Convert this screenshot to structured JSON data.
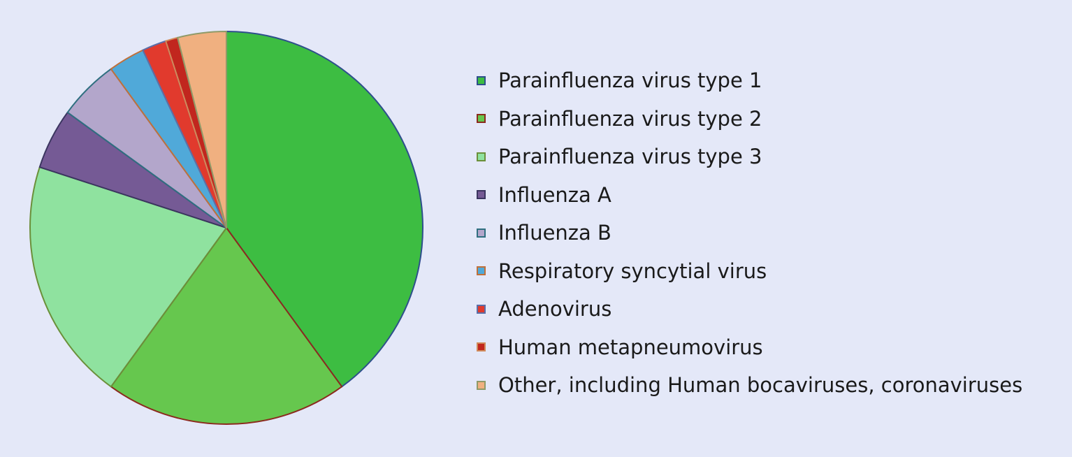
{
  "chart_data": {
    "type": "pie",
    "start": "12 o'clock",
    "direction": "clockwise",
    "legend_position": "right",
    "slices": [
      {
        "name": "Parainfluenza virus type 1",
        "value": 40,
        "color": "#3dbd42",
        "edge": "#2e4f8c"
      },
      {
        "name": "Parainfluenza virus type 2",
        "value": 20,
        "color": "#66c74e",
        "edge": "#8b2a1e"
      },
      {
        "name": "Parainfluenza virus type 3",
        "value": 20,
        "color": "#8fe29f",
        "edge": "#6b8f3a"
      },
      {
        "name": "Influenza A",
        "value": 5,
        "color": "#755a95",
        "edge": "#3b3560"
      },
      {
        "name": "Influenza B",
        "value": 5,
        "color": "#b3a6cb",
        "edge": "#2f6f80"
      },
      {
        "name": "Respiratory syncytial virus",
        "value": 3,
        "color": "#50a9d9",
        "edge": "#c0703a"
      },
      {
        "name": "Adenovirus",
        "value": 2,
        "color": "#e13a2d",
        "edge": "#5b6ea8"
      },
      {
        "name": "Human metapneumovirus",
        "value": 1,
        "color": "#c1261e",
        "edge": "#d08a5a"
      },
      {
        "name": "Other, including Human bocaviruses, coronaviruses",
        "value": 4,
        "color": "#f0b080",
        "edge": "#8f9a68"
      }
    ]
  }
}
